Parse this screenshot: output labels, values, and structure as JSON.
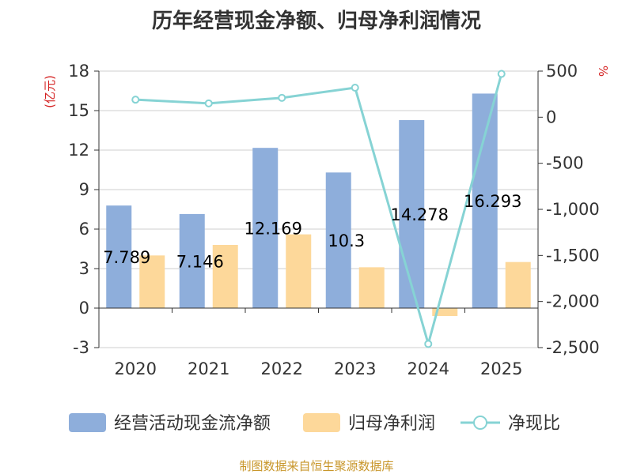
{
  "chart_data": {
    "type": "bar",
    "title": "历年经营现金净额、归母净利润情况",
    "categories": [
      "2020",
      "2021",
      "2022",
      "2023",
      "2024",
      "2025"
    ],
    "series": [
      {
        "name": "经营活动现金流净额",
        "type": "bar",
        "axis": "left",
        "color": "#8eaedb",
        "values": [
          7.789,
          7.146,
          12.169,
          10.3,
          14.278,
          16.293
        ],
        "labels": [
          "7.789",
          "7.146",
          "12.169",
          "10.3",
          "14.278",
          "16.293"
        ]
      },
      {
        "name": "归母净利润",
        "type": "bar",
        "axis": "left",
        "color": "#fdd89a",
        "values": [
          4.0,
          4.8,
          5.6,
          3.1,
          -0.6,
          3.5
        ]
      },
      {
        "name": "净现比",
        "type": "line",
        "axis": "right",
        "color": "#86d3d4",
        "values": [
          190,
          150,
          210,
          320,
          -2460,
          470
        ]
      }
    ],
    "y_left": {
      "unit": "(亿元)",
      "min": -3,
      "max": 18,
      "ticks": [
        -3,
        0,
        3,
        6,
        9,
        12,
        15,
        18
      ],
      "tick_labels": [
        "-3",
        "0",
        "3",
        "6",
        "9",
        "12",
        "15",
        "18"
      ]
    },
    "y_right": {
      "unit": "%",
      "min": -2500,
      "max": 500,
      "ticks": [
        -2500,
        -2000,
        -1500,
        -1000,
        -500,
        0,
        500
      ],
      "tick_labels": [
        "-2,500",
        "-2,000",
        "-1,500",
        "-1,000",
        "-500",
        "0",
        "500"
      ]
    },
    "grid": true,
    "legend_position": "bottom",
    "source": "制图数据来自恒生聚源数据库"
  }
}
